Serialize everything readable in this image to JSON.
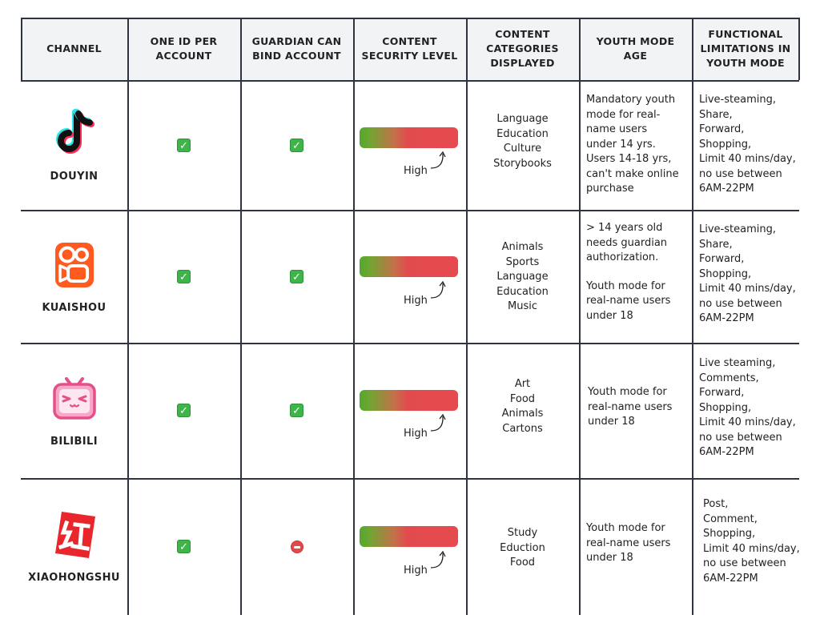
{
  "headers": {
    "channel": "CHANNEL",
    "one_id": [
      "ONE ID PER",
      "ACCOUNT"
    ],
    "guardian": [
      "GUARDIAN CAN",
      "BIND ACCOUNT"
    ],
    "security": [
      "CONTENT",
      "SECURITY LEVEL"
    ],
    "categories": [
      "CONTENT",
      "CATEGORIES",
      "DISPLAYED"
    ],
    "youth_age": [
      "YOUTH MODE",
      "AGE"
    ],
    "limitations": [
      "FUNCTIONAL",
      "LIMITATIONS IN",
      "YOUTH MODE"
    ]
  },
  "rows": [
    {
      "channel": "DOUYIN",
      "logo_icon": "douyin-logo-icon",
      "one_id": "check",
      "guardian": "check",
      "security_label": "High",
      "security_level": 0.85,
      "categories": [
        "Language",
        "Education",
        "Culture",
        "Storybooks"
      ],
      "youth_age": [
        "Mandatory youth",
        "mode for real-",
        "name users",
        "under 14 yrs.",
        "Users 14-18 yrs,",
        "can't make online",
        "purchase"
      ],
      "limitations": [
        "Live-steaming,",
        "Share,",
        "Forward,",
        "Shopping,",
        "Limit 40 mins/day,",
        "no use between",
        "6AM-22PM"
      ]
    },
    {
      "channel": "KUAISHOU",
      "logo_icon": "kuaishou-logo-icon",
      "one_id": "check",
      "guardian": "check",
      "security_label": "High",
      "security_level": 0.85,
      "categories": [
        "Animals",
        "Sports",
        "Language",
        "Education",
        "Music"
      ],
      "youth_age": [
        "> 14 years old",
        "needs guardian",
        "authorization.",
        "",
        "Youth mode for",
        "real-name users",
        "under 18"
      ],
      "limitations": [
        "Live-steaming,",
        "Share,",
        "Forward,",
        "Shopping,",
        "Limit 40 mins/day,",
        "no use between",
        "6AM-22PM"
      ]
    },
    {
      "channel": "BILIBILI",
      "logo_icon": "bilibili-logo-icon",
      "one_id": "check",
      "guardian": "check",
      "security_label": "High",
      "security_level": 0.85,
      "categories": [
        "Art",
        "Food",
        "Animals",
        "Cartons"
      ],
      "youth_age": [
        "Youth mode for",
        "real-name users",
        "under 18"
      ],
      "limitations": [
        "Live steaming,",
        "Comments,",
        "Forward,",
        "Shopping,",
        "Limit 40 mins/day,",
        "no use between",
        "6AM-22PM"
      ]
    },
    {
      "channel": "XIAOHONGSHU",
      "logo_icon": "xiaohongshu-logo-icon",
      "one_id": "check",
      "guardian": "no-entry",
      "security_label": "High",
      "security_level": 0.85,
      "categories": [
        "Study",
        "Eduction",
        "Food"
      ],
      "youth_age": [
        "Youth mode for",
        "real-name users",
        "under 18"
      ],
      "limitations": [
        "Post,",
        "Comment,",
        "Shopping,",
        "Limit 40 mins/day,",
        "no use between",
        "6AM-22PM"
      ]
    }
  ],
  "colors": {
    "check": "#3fb449",
    "no_entry": "#e54848",
    "bar_low": "#53a82e",
    "bar_high": "#e64a4e",
    "grid_line": "#2d3440",
    "header_bg": "#f2f3f4"
  }
}
